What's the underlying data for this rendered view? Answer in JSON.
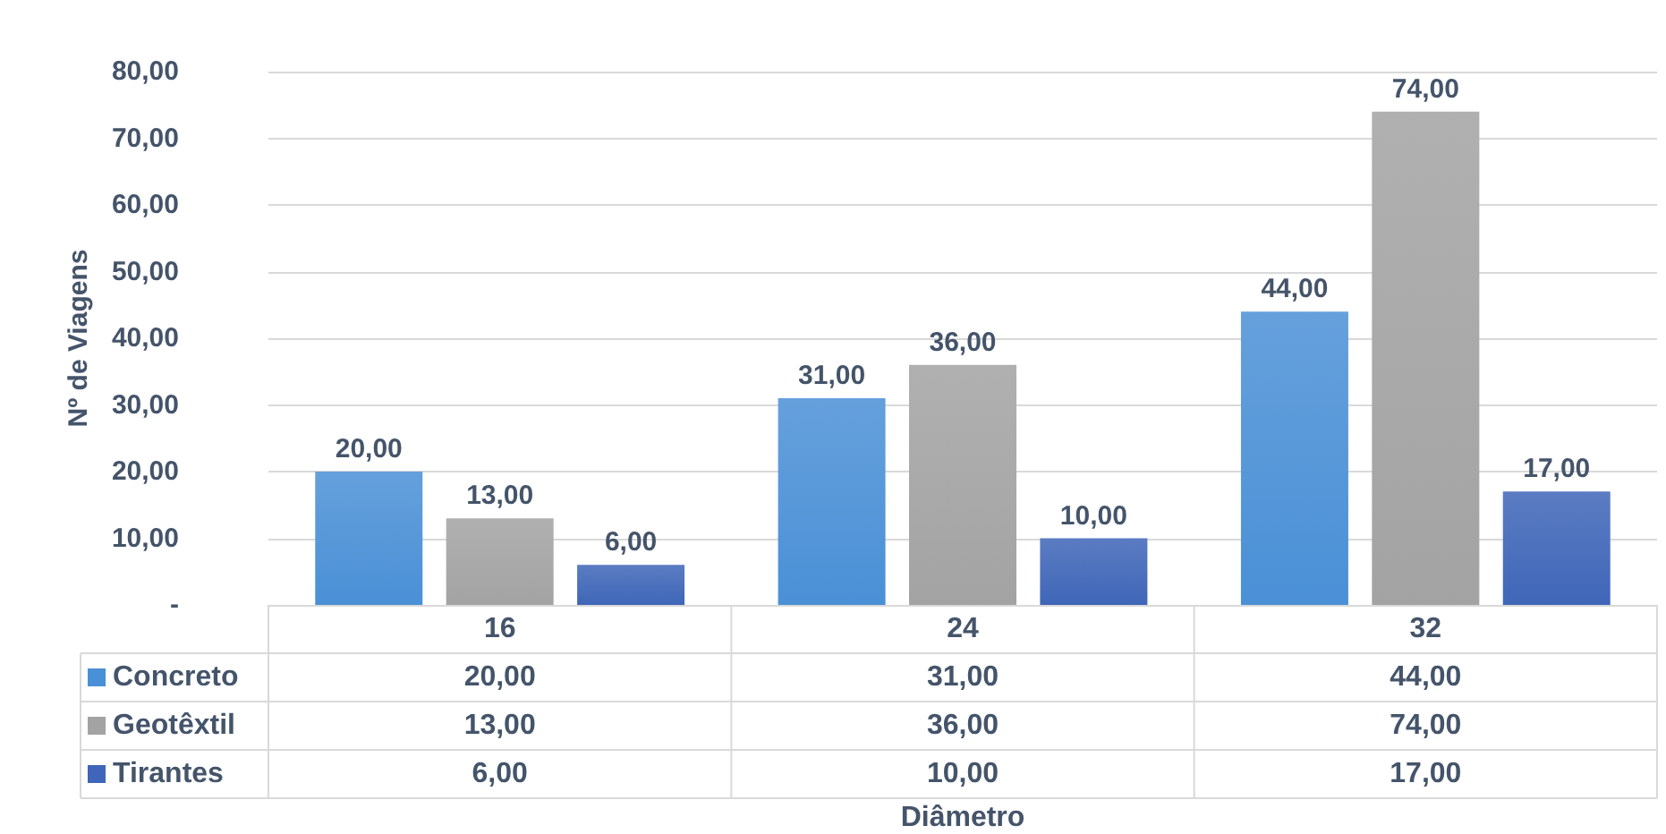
{
  "chart_data": {
    "type": "bar",
    "annotations": [
      "Diâmetro"
    ],
    "ylabel": "Nº de Viagens",
    "categories": [
      "16",
      "24",
      "32"
    ],
    "series": [
      {
        "name": "Concreto",
        "color": "#4a90d6",
        "values": [
          20,
          31,
          44
        ],
        "value_labels": [
          "20,00",
          "31,00",
          "44,00"
        ]
      },
      {
        "name": "Geotêxtil",
        "color": "#a3a3a3",
        "values": [
          13,
          36,
          74
        ],
        "value_labels": [
          "13,00",
          "36,00",
          "74,00"
        ]
      },
      {
        "name": "Tirantes",
        "color": "#3f66b8",
        "values": [
          6,
          10,
          17
        ],
        "value_labels": [
          "6,00",
          "10,00",
          "17,00"
        ]
      }
    ],
    "ylim": [
      0,
      80
    ],
    "yticks": [
      {
        "value": 0,
        "label": "-"
      },
      {
        "value": 10,
        "label": "10,00"
      },
      {
        "value": 20,
        "label": "20,00"
      },
      {
        "value": 30,
        "label": "30,00"
      },
      {
        "value": 40,
        "label": "40,00"
      },
      {
        "value": 50,
        "label": "50,00"
      },
      {
        "value": 60,
        "label": "60,00"
      },
      {
        "value": 70,
        "label": "70,00"
      },
      {
        "value": 80,
        "label": "80,00"
      }
    ],
    "grid": "y",
    "legend": "bottom"
  }
}
